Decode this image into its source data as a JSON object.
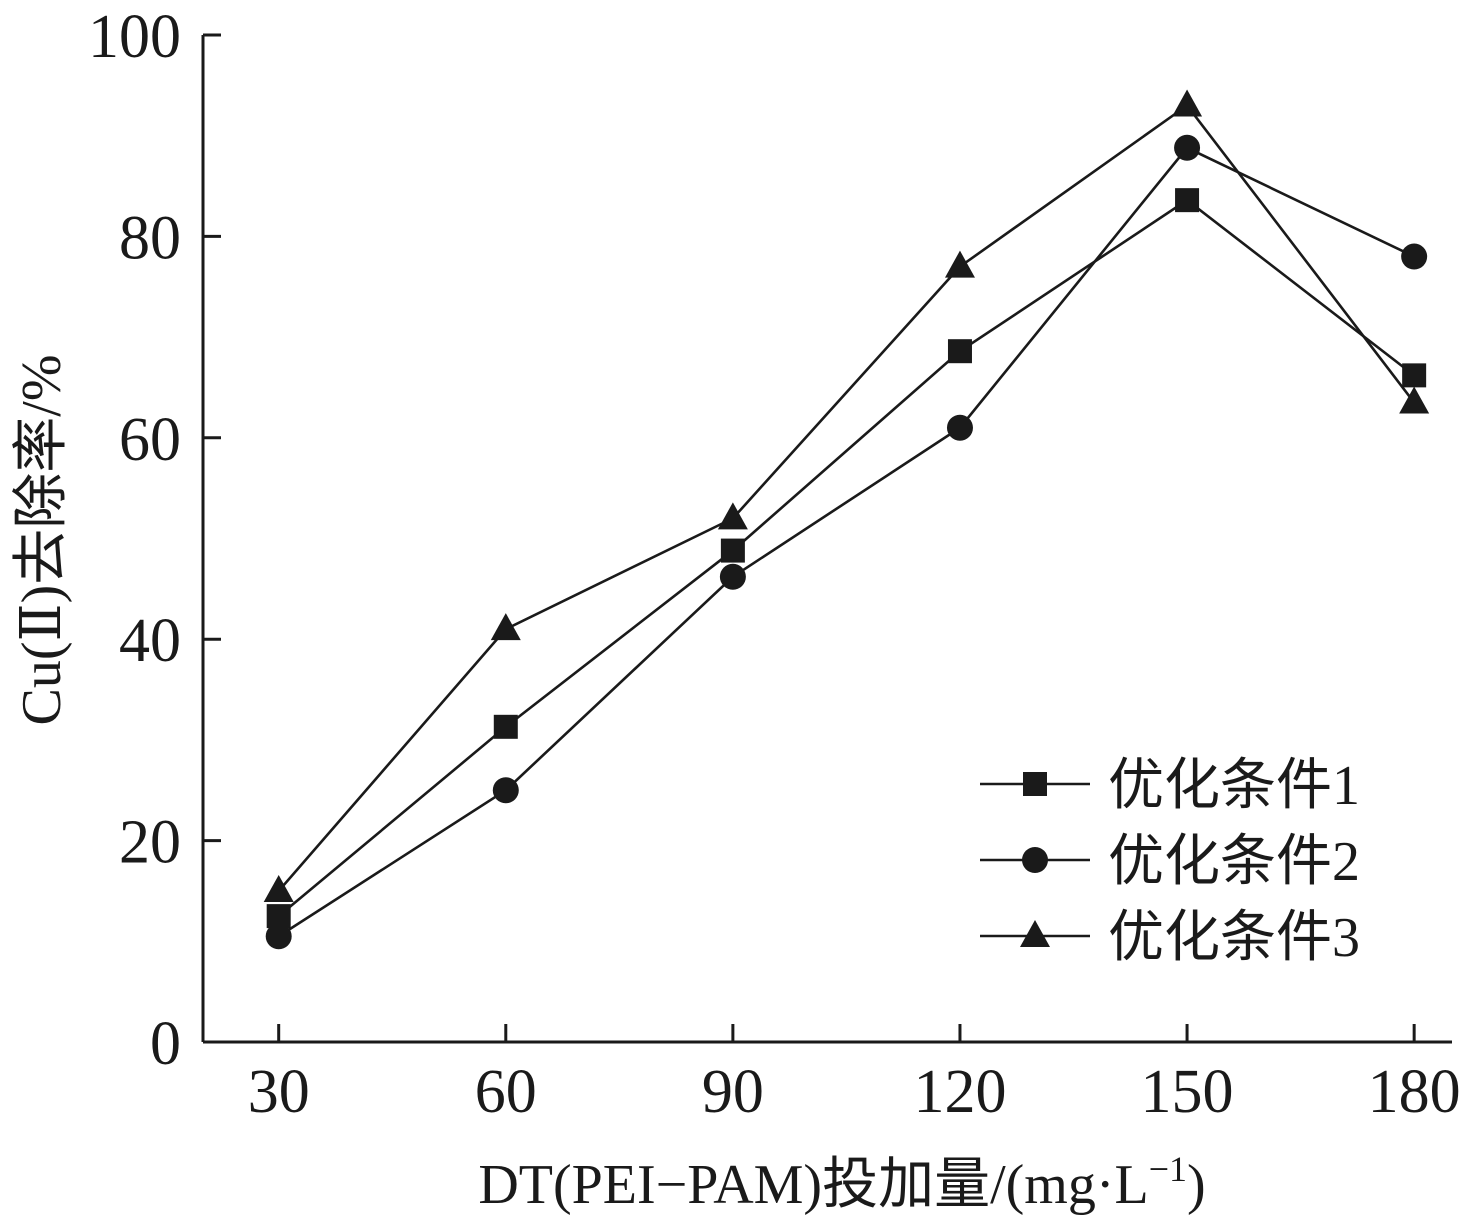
{
  "chart_data": {
    "type": "line",
    "xlabel_main": "DT(PEI−PAM)投加量/(mg·L",
    "xlabel_sup": "−1",
    "xlabel_tail": ")",
    "ylabel": "Cu(Ⅱ)去除率/%",
    "x": [
      30,
      60,
      90,
      120,
      150,
      180
    ],
    "xticks": [
      "30",
      "60",
      "90",
      "120",
      "150",
      "180"
    ],
    "xlim": [
      20,
      185
    ],
    "yticks": [
      "0",
      "20",
      "40",
      "60",
      "80",
      "100"
    ],
    "ylim": [
      0,
      100
    ],
    "grid": false,
    "legend_position": "bottom-right",
    "series": [
      {
        "name": "优化条件1",
        "marker": "square",
        "values": [
          12.5,
          31.3,
          48.8,
          68.6,
          83.6,
          66.2
        ]
      },
      {
        "name": "优化条件2",
        "marker": "circle",
        "values": [
          10.5,
          25.0,
          46.2,
          61.0,
          88.8,
          78.0
        ]
      },
      {
        "name": "优化条件3",
        "marker": "triangle",
        "values": [
          15.0,
          41.0,
          52.0,
          77.0,
          93.0,
          63.5
        ]
      }
    ]
  }
}
